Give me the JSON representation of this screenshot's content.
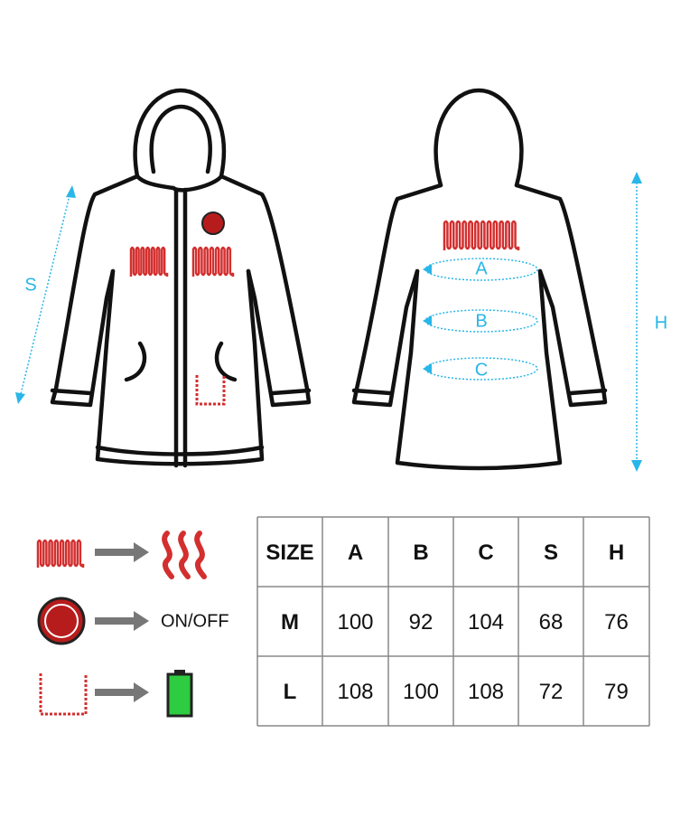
{
  "diagram": {
    "front_labels": {
      "s": "S"
    },
    "back_labels": {
      "a": "A",
      "b": "B",
      "c": "C",
      "h": "H"
    }
  },
  "legend": {
    "power_button": "ON/OFF"
  },
  "table": {
    "header": [
      "SIZE",
      "A",
      "B",
      "C",
      "S",
      "H"
    ],
    "rows": [
      [
        "M",
        100,
        92,
        104,
        68,
        76
      ],
      [
        "L",
        108,
        100,
        108,
        72,
        79
      ]
    ]
  }
}
